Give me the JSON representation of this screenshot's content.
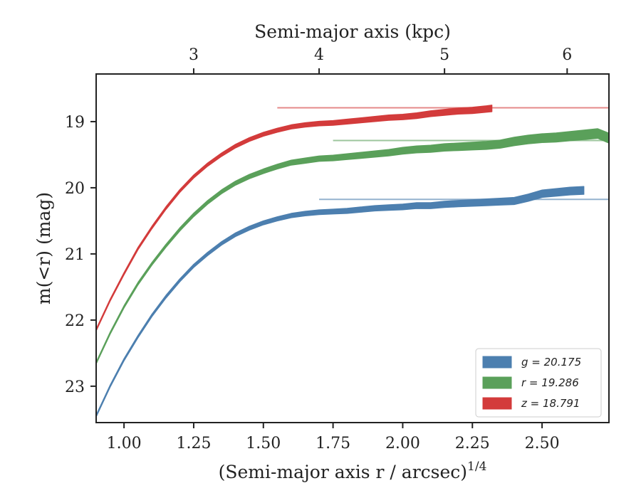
{
  "chart_data": {
    "type": "area",
    "title": "",
    "xlabel": "(Semi-major axis r / arcsec)",
    "xlabel_exponent": "1/4",
    "ylabel": "m(<r) (mag)",
    "top_xlabel": "Semi-major axis (kpc)",
    "xlim": [
      0.9,
      2.74
    ],
    "ylim": [
      23.55,
      18.28
    ],
    "y_inverted": true,
    "x_ticks": [
      1.0,
      1.25,
      1.5,
      1.75,
      2.0,
      2.25,
      2.5
    ],
    "x_tick_labels": [
      "1.00",
      "1.25",
      "1.50",
      "1.75",
      "2.00",
      "2.25",
      "2.50"
    ],
    "y_ticks": [
      19,
      20,
      21,
      22,
      23
    ],
    "y_tick_labels": [
      "19",
      "20",
      "21",
      "22",
      "23"
    ],
    "top_x_ticks": [
      3,
      4,
      5,
      6
    ],
    "top_x_tick_labels": [
      "3",
      "4",
      "5",
      "6"
    ],
    "top_x_tick_positions": [
      1.25,
      1.7,
      2.15,
      2.59
    ],
    "legend_position": "lower-right",
    "grid": false,
    "series": [
      {
        "name": "g = 20.175",
        "color": "#4c7faf",
        "asymptote": 20.175,
        "band_width": [
          0.03,
          0.12
        ],
        "x": [
          0.9,
          0.95,
          1.0,
          1.05,
          1.1,
          1.15,
          1.2,
          1.25,
          1.3,
          1.35,
          1.4,
          1.45,
          1.5,
          1.55,
          1.6,
          1.65,
          1.7,
          1.75,
          1.8,
          1.85,
          1.9,
          1.95,
          2.0,
          2.05,
          2.1,
          2.15,
          2.2,
          2.25,
          2.3,
          2.35,
          2.4,
          2.45,
          2.5,
          2.55,
          2.6,
          2.65
        ],
        "y": [
          23.45,
          23.0,
          22.6,
          22.25,
          21.93,
          21.65,
          21.4,
          21.18,
          21.0,
          20.84,
          20.71,
          20.61,
          20.53,
          20.47,
          20.42,
          20.39,
          20.37,
          20.36,
          20.35,
          20.33,
          20.31,
          20.3,
          20.29,
          20.27,
          20.27,
          20.25,
          20.24,
          20.23,
          20.22,
          20.21,
          20.2,
          20.15,
          20.09,
          20.07,
          20.05,
          20.04
        ]
      },
      {
        "name": "r = 19.286",
        "color": "#5aa05a",
        "asymptote": 19.286,
        "band_width": [
          0.03,
          0.15
        ],
        "x": [
          0.9,
          0.95,
          1.0,
          1.05,
          1.1,
          1.15,
          1.2,
          1.25,
          1.3,
          1.35,
          1.4,
          1.45,
          1.5,
          1.55,
          1.6,
          1.65,
          1.7,
          1.75,
          1.8,
          1.85,
          1.9,
          1.95,
          2.0,
          2.05,
          2.1,
          2.15,
          2.2,
          2.25,
          2.3,
          2.35,
          2.4,
          2.45,
          2.5,
          2.55,
          2.6,
          2.65,
          2.7,
          2.74
        ],
        "y": [
          22.65,
          22.2,
          21.8,
          21.45,
          21.15,
          20.88,
          20.63,
          20.41,
          20.22,
          20.06,
          19.93,
          19.83,
          19.75,
          19.68,
          19.62,
          19.59,
          19.56,
          19.55,
          19.53,
          19.51,
          19.49,
          19.47,
          19.44,
          19.42,
          19.41,
          19.39,
          19.38,
          19.37,
          19.36,
          19.34,
          19.3,
          19.27,
          19.25,
          19.24,
          19.22,
          19.2,
          19.18,
          19.25
        ]
      },
      {
        "name": "z = 18.791",
        "color": "#d33b3b",
        "asymptote": 18.791,
        "band_width": [
          0.03,
          0.1
        ],
        "x": [
          0.9,
          0.95,
          1.0,
          1.05,
          1.1,
          1.15,
          1.2,
          1.25,
          1.3,
          1.35,
          1.4,
          1.45,
          1.5,
          1.55,
          1.6,
          1.65,
          1.7,
          1.75,
          1.8,
          1.85,
          1.9,
          1.95,
          2.0,
          2.05,
          2.1,
          2.15,
          2.2,
          2.25,
          2.3,
          2.32
        ],
        "y": [
          22.15,
          21.7,
          21.3,
          20.92,
          20.6,
          20.31,
          20.05,
          19.83,
          19.65,
          19.5,
          19.37,
          19.27,
          19.19,
          19.13,
          19.08,
          19.05,
          19.03,
          19.02,
          19.0,
          18.98,
          18.96,
          18.94,
          18.93,
          18.91,
          18.88,
          18.86,
          18.84,
          18.83,
          18.81,
          18.8
        ]
      }
    ]
  }
}
